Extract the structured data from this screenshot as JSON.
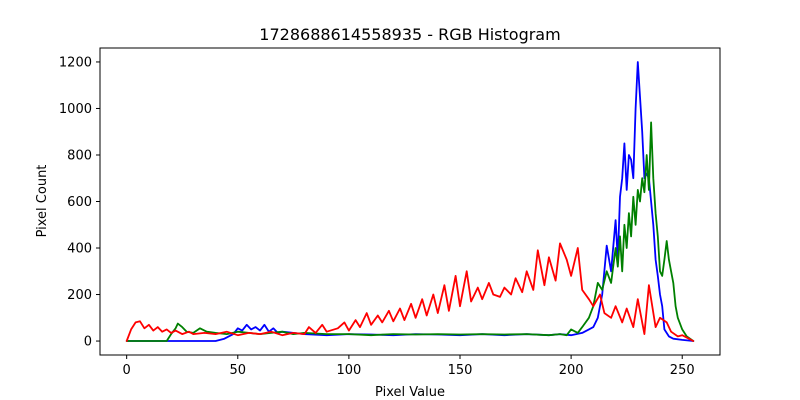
{
  "chart_data": {
    "type": "line",
    "title": "1728688614558935 - RGB Histogram",
    "xlabel": "Pixel Value",
    "ylabel": "Pixel Count",
    "xlim": [
      -12,
      267
    ],
    "ylim": [
      -60,
      1260
    ],
    "xticks": [
      0,
      50,
      100,
      150,
      200,
      250
    ],
    "yticks": [
      0,
      200,
      400,
      600,
      800,
      1000,
      1200
    ],
    "grid": false,
    "legend": "none",
    "series": [
      {
        "color": "#0000ff",
        "x": [
          0,
          10,
          20,
          30,
          40,
          44,
          48,
          50,
          52,
          54,
          56,
          58,
          60,
          62,
          64,
          66,
          68,
          70,
          75,
          80,
          90,
          100,
          110,
          120,
          130,
          140,
          150,
          160,
          170,
          180,
          190,
          195,
          200,
          205,
          208,
          210,
          212,
          214,
          216,
          218,
          220,
          221,
          222,
          223,
          224,
          225,
          226,
          227,
          228,
          229,
          230,
          231,
          232,
          233,
          234,
          235,
          236,
          237,
          238,
          239,
          240,
          241,
          242,
          244,
          246,
          250,
          255
        ],
        "y": [
          0,
          0,
          0,
          0,
          0,
          10,
          30,
          55,
          45,
          70,
          50,
          60,
          45,
          70,
          40,
          55,
          35,
          40,
          35,
          30,
          25,
          30,
          28,
          25,
          30,
          28,
          25,
          30,
          25,
          30,
          25,
          30,
          25,
          35,
          50,
          60,
          100,
          200,
          410,
          300,
          520,
          350,
          620,
          700,
          850,
          650,
          800,
          780,
          700,
          1000,
          1200,
          1050,
          900,
          700,
          720,
          700,
          600,
          500,
          350,
          280,
          200,
          150,
          50,
          20,
          10,
          5,
          0
        ]
      },
      {
        "color": "#008000",
        "x": [
          0,
          10,
          18,
          20,
          22,
          23,
          25,
          27,
          30,
          33,
          36,
          40,
          45,
          50,
          55,
          60,
          65,
          70,
          75,
          80,
          90,
          100,
          110,
          120,
          130,
          140,
          150,
          160,
          170,
          180,
          190,
          195,
          198,
          200,
          203,
          205,
          208,
          210,
          212,
          214,
          216,
          218,
          220,
          221,
          222,
          223,
          224,
          225,
          226,
          227,
          228,
          229,
          230,
          231,
          232,
          233,
          234,
          235,
          236,
          237,
          238,
          239,
          240,
          241,
          242,
          243,
          244,
          245,
          246,
          247,
          248,
          250,
          252,
          255
        ],
        "y": [
          0,
          0,
          0,
          30,
          55,
          75,
          60,
          40,
          35,
          55,
          40,
          35,
          30,
          40,
          35,
          30,
          35,
          40,
          30,
          35,
          30,
          30,
          25,
          30,
          28,
          30,
          28,
          30,
          28,
          30,
          25,
          30,
          25,
          50,
          35,
          60,
          100,
          150,
          250,
          220,
          300,
          250,
          400,
          320,
          450,
          300,
          500,
          400,
          550,
          450,
          620,
          500,
          650,
          600,
          700,
          640,
          800,
          650,
          940,
          700,
          550,
          450,
          300,
          280,
          350,
          430,
          350,
          300,
          250,
          150,
          100,
          50,
          20,
          0
        ]
      },
      {
        "color": "#ff0000",
        "x": [
          0,
          2,
          4,
          6,
          8,
          10,
          12,
          14,
          16,
          18,
          20,
          22,
          25,
          28,
          30,
          35,
          40,
          45,
          50,
          55,
          60,
          65,
          70,
          75,
          80,
          82,
          85,
          88,
          90,
          95,
          98,
          100,
          103,
          105,
          108,
          110,
          113,
          115,
          118,
          120,
          123,
          125,
          128,
          130,
          133,
          135,
          138,
          140,
          143,
          145,
          148,
          150,
          153,
          155,
          158,
          160,
          163,
          165,
          168,
          170,
          173,
          175,
          178,
          180,
          183,
          185,
          188,
          190,
          193,
          195,
          198,
          200,
          203,
          205,
          208,
          210,
          213,
          215,
          218,
          220,
          223,
          225,
          228,
          230,
          233,
          235,
          238,
          240,
          243,
          245,
          248,
          250,
          253,
          255
        ],
        "y": [
          0,
          50,
          80,
          85,
          55,
          70,
          45,
          60,
          40,
          50,
          35,
          45,
          30,
          40,
          30,
          35,
          30,
          40,
          25,
          35,
          30,
          40,
          25,
          35,
          30,
          60,
          35,
          70,
          40,
          55,
          80,
          45,
          90,
          60,
          120,
          70,
          110,
          80,
          130,
          85,
          140,
          90,
          160,
          100,
          180,
          110,
          200,
          120,
          240,
          130,
          280,
          150,
          300,
          170,
          230,
          180,
          250,
          200,
          190,
          230,
          200,
          270,
          210,
          300,
          220,
          390,
          240,
          360,
          260,
          420,
          350,
          280,
          400,
          220,
          180,
          150,
          200,
          120,
          100,
          150,
          80,
          140,
          60,
          180,
          30,
          240,
          60,
          100,
          80,
          40,
          20,
          25,
          10,
          0
        ]
      }
    ]
  }
}
